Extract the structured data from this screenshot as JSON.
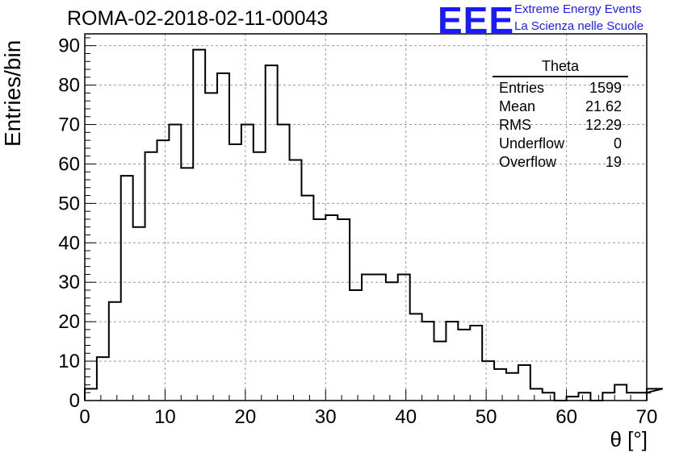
{
  "header": {
    "run_title": "ROMA-02-2018-02-11-00043",
    "logo_text": "EEE",
    "logo_line1": "Extreme Energy Events",
    "logo_line2": "La Scienza nelle Scuole",
    "logo_color": "#1a1aff"
  },
  "stats_box": {
    "title": "Theta",
    "rows": [
      {
        "label": "Entries",
        "value": "1599"
      },
      {
        "label": "Mean",
        "value": "21.62"
      },
      {
        "label": "RMS",
        "value": "12.29"
      },
      {
        "label": "Underflow",
        "value": "0"
      },
      {
        "label": "Overflow",
        "value": "19"
      }
    ]
  },
  "chart_data": {
    "type": "histogram",
    "title": "ROMA-02-2018-02-11-00043",
    "xlabel": "θ [°]",
    "ylabel": "Entries/bin",
    "xlim": [
      0,
      70
    ],
    "ylim": [
      0,
      93
    ],
    "x_ticks": [
      0,
      10,
      20,
      30,
      40,
      50,
      60,
      70
    ],
    "y_ticks": [
      0,
      10,
      20,
      30,
      40,
      50,
      60,
      70,
      80,
      90
    ],
    "grid": true,
    "bin_width": 1.5,
    "bin_start": 0,
    "values": [
      3,
      11,
      25,
      57,
      44,
      63,
      66,
      70,
      59,
      89,
      78,
      83,
      65,
      70,
      63,
      85,
      70,
      61,
      52,
      46,
      47,
      46,
      28,
      32,
      32,
      30,
      32,
      22,
      20,
      15,
      20,
      18,
      19,
      10,
      8,
      7,
      9,
      3,
      2,
      0,
      1,
      2,
      0,
      2,
      4,
      2,
      2,
      2,
      3
    ]
  }
}
